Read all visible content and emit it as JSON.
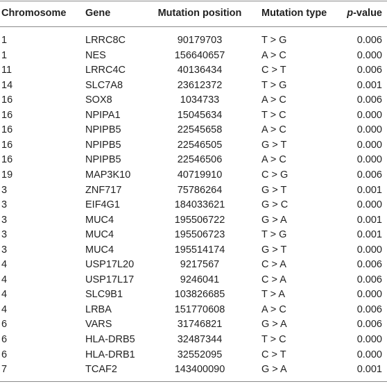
{
  "table": {
    "columns": [
      "Chromosome",
      "Gene",
      "Mutation position",
      "Mutation type",
      "p-value"
    ],
    "rows": [
      [
        "1",
        "LRRC8C",
        "90179703",
        "T > G",
        "0.006"
      ],
      [
        "1",
        "NES",
        "156640657",
        "A > C",
        "0.000"
      ],
      [
        "11",
        "LRRC4C",
        "40136434",
        "C > T",
        "0.006"
      ],
      [
        "14",
        "SLC7A8",
        "23612372",
        "T > G",
        "0.001"
      ],
      [
        "16",
        "SOX8",
        "1034733",
        "A > C",
        "0.006"
      ],
      [
        "16",
        "NPIPA1",
        "15045634",
        "T > C",
        "0.000"
      ],
      [
        "16",
        "NPIPB5",
        "22545658",
        "A > C",
        "0.000"
      ],
      [
        "16",
        "NPIPB5",
        "22546505",
        "G > T",
        "0.000"
      ],
      [
        "16",
        "NPIPB5",
        "22546506",
        "A > C",
        "0.000"
      ],
      [
        "19",
        "MAP3K10",
        "40719910",
        "C > G",
        "0.006"
      ],
      [
        "3",
        "ZNF717",
        "75786264",
        "G > T",
        "0.001"
      ],
      [
        "3",
        "EIF4G1",
        "184033621",
        "G > C",
        "0.000"
      ],
      [
        "3",
        "MUC4",
        "195506722",
        "G > A",
        "0.001"
      ],
      [
        "3",
        "MUC4",
        "195506723",
        "T > G",
        "0.001"
      ],
      [
        "3",
        "MUC4",
        "195514174",
        "G > T",
        "0.000"
      ],
      [
        "4",
        "USP17L20",
        "9217567",
        "C > A",
        "0.006"
      ],
      [
        "4",
        "USP17L17",
        "9246041",
        "C > A",
        "0.006"
      ],
      [
        "4",
        "SLC9B1",
        "103826685",
        "T > A",
        "0.000"
      ],
      [
        "4",
        "LRBA",
        "151770608",
        "A > C",
        "0.006"
      ],
      [
        "6",
        "VARS",
        "31746821",
        "G > A",
        "0.006"
      ],
      [
        "6",
        "HLA-DRB5",
        "32487344",
        "T > C",
        "0.000"
      ],
      [
        "6",
        "HLA-DRB1",
        "32552095",
        "C > T",
        "0.000"
      ],
      [
        "7",
        "TCAF2",
        "143400090",
        "G > A",
        "0.001"
      ]
    ]
  }
}
